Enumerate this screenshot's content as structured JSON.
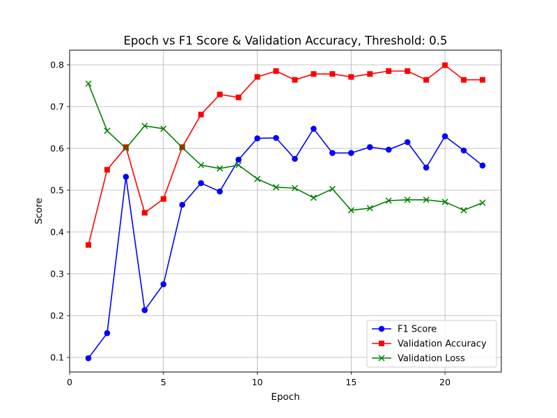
{
  "chart_data": {
    "type": "line",
    "title": "Epoch vs F1 Score & Validation Accuracy, Threshold: 0.5",
    "xlabel": "Epoch",
    "ylabel": "Score",
    "xlim": [
      0,
      23
    ],
    "ylim": [
      0.065,
      0.835
    ],
    "xticks": [
      0,
      5,
      10,
      15,
      20
    ],
    "yticks": [
      0.1,
      0.2,
      0.3,
      0.4,
      0.5,
      0.6,
      0.7,
      0.8
    ],
    "grid": true,
    "legend_position": "lower-right",
    "x": [
      1,
      2,
      3,
      4,
      5,
      6,
      7,
      8,
      9,
      10,
      11,
      12,
      13,
      14,
      15,
      16,
      17,
      18,
      19,
      20,
      21,
      22
    ],
    "series": [
      {
        "name": "F1 Score",
        "color": "#0000ff",
        "marker": "circle",
        "values": [
          0.098,
          0.158,
          0.532,
          0.213,
          0.275,
          0.465,
          0.517,
          0.497,
          0.573,
          0.624,
          0.625,
          0.575,
          0.647,
          0.589,
          0.589,
          0.603,
          0.597,
          0.615,
          0.554,
          0.629,
          0.595,
          0.559
        ]
      },
      {
        "name": "Validation Accuracy",
        "color": "#ff0000",
        "marker": "square",
        "values": [
          0.369,
          0.549,
          0.603,
          0.446,
          0.479,
          0.603,
          0.681,
          0.729,
          0.722,
          0.771,
          0.785,
          0.764,
          0.778,
          0.778,
          0.771,
          0.778,
          0.785,
          0.785,
          0.764,
          0.799,
          0.764,
          0.764
        ]
      },
      {
        "name": "Validation Loss",
        "color": "#008000",
        "marker": "x",
        "values": [
          0.755,
          0.642,
          0.6,
          0.654,
          0.647,
          0.602,
          0.56,
          0.552,
          0.56,
          0.527,
          0.507,
          0.505,
          0.482,
          0.503,
          0.452,
          0.457,
          0.475,
          0.477,
          0.477,
          0.472,
          0.452,
          0.47
        ]
      }
    ]
  }
}
